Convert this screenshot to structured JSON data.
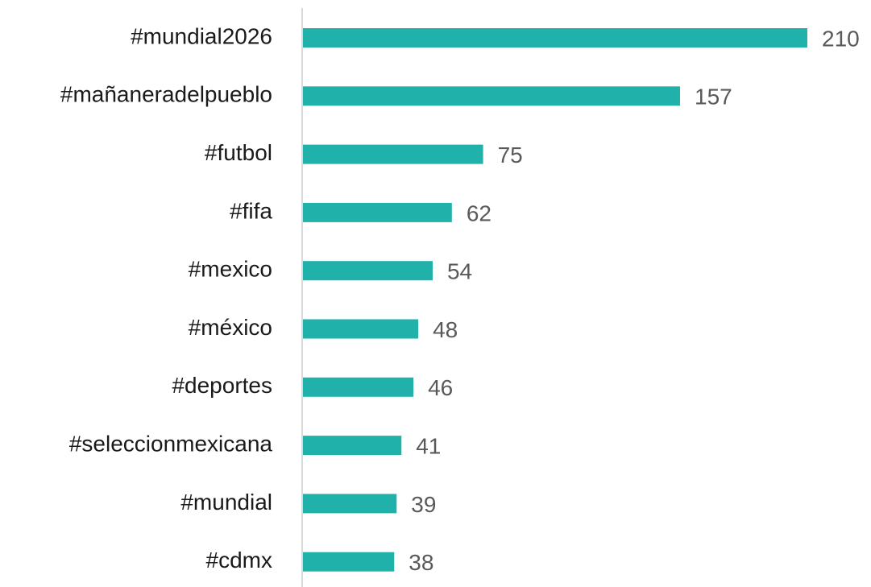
{
  "chart_data": {
    "type": "bar",
    "orientation": "horizontal",
    "categories": [
      "#mundial2026",
      "#mañaneradelpueblo",
      "#futbol",
      "#fifa",
      "#mexico",
      "#méxico",
      "#deportes",
      "#seleccionmexicana",
      "#mundial",
      "#cdmx"
    ],
    "values": [
      210,
      157,
      75,
      62,
      54,
      48,
      46,
      41,
      39,
      38
    ],
    "color": "#20b2aa"
  }
}
